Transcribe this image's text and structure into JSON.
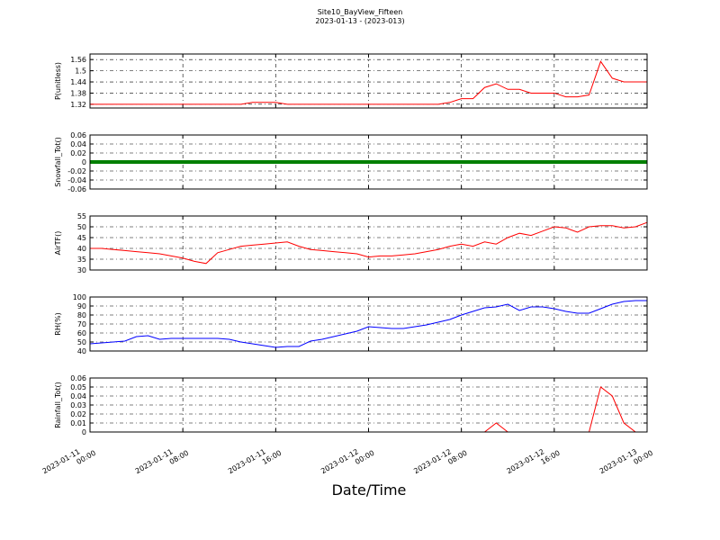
{
  "title": "Site10_BayView_Fifteen",
  "subtitle": "2023-01-13 - (2023-013)",
  "x_label": "Date/Time",
  "xlim": [
    "2023-01-11 00:00",
    "2023-01-13 00:00"
  ],
  "xticks": [
    "2023-01-11 00:00",
    "2023-01-11 08:00",
    "2023-01-11 16:00",
    "2023-01-12 00:00",
    "2023-01-12 08:00",
    "2023-01-12 16:00",
    "2023-01-13 00:00"
  ],
  "x": [
    "2023-01-11 00:00",
    "2023-01-11 01:00",
    "2023-01-11 02:00",
    "2023-01-11 03:00",
    "2023-01-11 04:00",
    "2023-01-11 05:00",
    "2023-01-11 06:00",
    "2023-01-11 07:00",
    "2023-01-11 08:00",
    "2023-01-11 09:00",
    "2023-01-11 10:00",
    "2023-01-11 11:00",
    "2023-01-11 12:00",
    "2023-01-11 13:00",
    "2023-01-11 14:00",
    "2023-01-11 15:00",
    "2023-01-11 16:00",
    "2023-01-11 17:00",
    "2023-01-11 18:00",
    "2023-01-11 19:00",
    "2023-01-11 20:00",
    "2023-01-11 21:00",
    "2023-01-11 22:00",
    "2023-01-11 23:00",
    "2023-01-12 00:00",
    "2023-01-12 01:00",
    "2023-01-12 02:00",
    "2023-01-12 03:00",
    "2023-01-12 04:00",
    "2023-01-12 05:00",
    "2023-01-12 06:00",
    "2023-01-12 07:00",
    "2023-01-12 08:00",
    "2023-01-12 09:00",
    "2023-01-12 10:00",
    "2023-01-12 11:00",
    "2023-01-12 12:00",
    "2023-01-12 13:00",
    "2023-01-12 14:00",
    "2023-01-12 15:00",
    "2023-01-12 16:00",
    "2023-01-12 17:00",
    "2023-01-12 18:00",
    "2023-01-12 19:00",
    "2023-01-12 20:00",
    "2023-01-12 21:00",
    "2023-01-12 22:00",
    "2023-01-12 23:00",
    "2023-01-13 00:00"
  ],
  "grid": true,
  "chart_data": [
    {
      "type": "line",
      "y_label": "P(unitless)",
      "ylim": [
        1.3,
        1.59
      ],
      "yticks": [
        1.32,
        1.38,
        1.44,
        1.5,
        1.56
      ],
      "series": [
        {
          "color": "#ff0000",
          "line_width": 1,
          "values": [
            1.32,
            1.32,
            1.32,
            1.32,
            1.32,
            1.32,
            1.32,
            1.32,
            1.32,
            1.32,
            1.32,
            1.32,
            1.32,
            1.32,
            1.33,
            1.33,
            1.33,
            1.32,
            1.32,
            1.32,
            1.32,
            1.32,
            1.32,
            1.32,
            1.32,
            1.32,
            1.32,
            1.32,
            1.32,
            1.32,
            1.32,
            1.33,
            1.35,
            1.35,
            1.41,
            1.43,
            1.4,
            1.4,
            1.38,
            1.38,
            1.38,
            1.36,
            1.36,
            1.37,
            1.55,
            1.46,
            1.44,
            1.44,
            1.44
          ]
        }
      ]
    },
    {
      "type": "line",
      "y_label": "Snowfall_Tot()",
      "ylim": [
        -0.06,
        0.06
      ],
      "yticks": [
        -0.06,
        -0.04,
        -0.02,
        0.0,
        0.02,
        0.04,
        0.06
      ],
      "series": [
        {
          "color": "#008000",
          "line_width": 4,
          "values": [
            0,
            0,
            0,
            0,
            0,
            0,
            0,
            0,
            0,
            0,
            0,
            0,
            0,
            0,
            0,
            0,
            0,
            0,
            0,
            0,
            0,
            0,
            0,
            0,
            0,
            0,
            0,
            0,
            0,
            0,
            0,
            0,
            0,
            0,
            0,
            0,
            0,
            0,
            0,
            0,
            0,
            0,
            0,
            0,
            0,
            0,
            0,
            0,
            0
          ]
        }
      ]
    },
    {
      "type": "line",
      "y_label": "AirTF()",
      "ylim": [
        30,
        55
      ],
      "yticks": [
        30,
        35,
        40,
        45,
        50,
        55
      ],
      "series": [
        {
          "color": "#ff0000",
          "line_width": 1,
          "values": [
            40,
            40,
            39.5,
            39,
            38.5,
            38,
            37.5,
            36.5,
            35.5,
            34,
            33,
            38,
            39.5,
            41,
            41.5,
            42,
            42.5,
            43,
            41,
            39.5,
            39,
            38.5,
            38,
            37.5,
            36,
            36.5,
            36.5,
            37,
            37.5,
            38.5,
            39.5,
            41,
            42,
            41,
            43,
            42,
            45,
            47,
            46,
            48,
            50,
            49.5,
            47.5,
            50,
            50.5,
            50.5,
            49.5,
            50,
            52
          ]
        }
      ]
    },
    {
      "type": "line",
      "y_label": "RH(%)",
      "ylim": [
        40,
        100
      ],
      "yticks": [
        40,
        50,
        60,
        70,
        80,
        90,
        100
      ],
      "series": [
        {
          "color": "#0000ff",
          "line_width": 1,
          "values": [
            48,
            49,
            50,
            51,
            56,
            57,
            53,
            54,
            54,
            54,
            54,
            54,
            53,
            50,
            48,
            46,
            44,
            45,
            45,
            51,
            53,
            56,
            59,
            62,
            67,
            66,
            65,
            65,
            67,
            69,
            72,
            75,
            80,
            84,
            88,
            89,
            92,
            85,
            89,
            89,
            87,
            84,
            82,
            82,
            87,
            92,
            95,
            96,
            96
          ]
        }
      ]
    },
    {
      "type": "line",
      "y_label": "Rainfall_Tot()",
      "ylim": [
        0,
        0.06
      ],
      "yticks": [
        0.0,
        0.01,
        0.02,
        0.03,
        0.04,
        0.05,
        0.06
      ],
      "series": [
        {
          "color": "#ff0000",
          "line_width": 1,
          "values": [
            0,
            0,
            0,
            0,
            0,
            0,
            0,
            0,
            0,
            0,
            0,
            0,
            0,
            0,
            0,
            0,
            0,
            0,
            0,
            0,
            0,
            0,
            0,
            0,
            0,
            0,
            0,
            0,
            0,
            0,
            0,
            0,
            0,
            0,
            0,
            0.01,
            0,
            0,
            0,
            0,
            0,
            0,
            0,
            0,
            0.05,
            0.04,
            0.01,
            0,
            0
          ]
        }
      ]
    }
  ]
}
